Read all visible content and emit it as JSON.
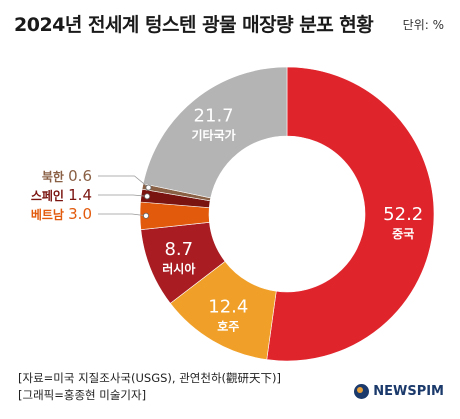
{
  "header": {
    "title": "2024년 전세계 텅스텐 광물 매장량 분포 현황",
    "unit": "단위: %"
  },
  "footer": {
    "source": "[자료=미국 지질조사국(USGS), 관연천하(觀研天下)]",
    "graphic": "[그래픽=홍종현 미술기자]",
    "brand": "NEWSPIM"
  },
  "chart_data": {
    "type": "pie",
    "donut": true,
    "title": "2024년 전세계 텅스텐 광물 매장량 분포 현황",
    "unit": "%",
    "start": "12 o'clock, clockwise",
    "slices": [
      {
        "label": "중국",
        "value": 52.2,
        "color": "#e0242c",
        "label_color": "#ffffff",
        "label_position": "inside"
      },
      {
        "label": "호주",
        "value": 12.4,
        "color": "#f0a028",
        "label_color": "#ffffff",
        "label_position": "inside"
      },
      {
        "label": "러시아",
        "value": 8.7,
        "color": "#a81c22",
        "label_color": "#ffffff",
        "label_position": "inside"
      },
      {
        "label": "베트남",
        "value": 3.0,
        "color": "#e25b0d",
        "label_color": "#e25b0d",
        "label_position": "outside-left"
      },
      {
        "label": "스페인",
        "value": 1.4,
        "color": "#7a1410",
        "label_color": "#7a1410",
        "label_position": "outside-left"
      },
      {
        "label": "북한",
        "value": 0.6,
        "color": "#8a6045",
        "label_color": "#8a6045",
        "label_position": "outside-left"
      },
      {
        "label": "기타국가",
        "value": 21.7,
        "color": "#b4b4b4",
        "label_color": "#ffffff",
        "label_position": "inside"
      }
    ]
  }
}
